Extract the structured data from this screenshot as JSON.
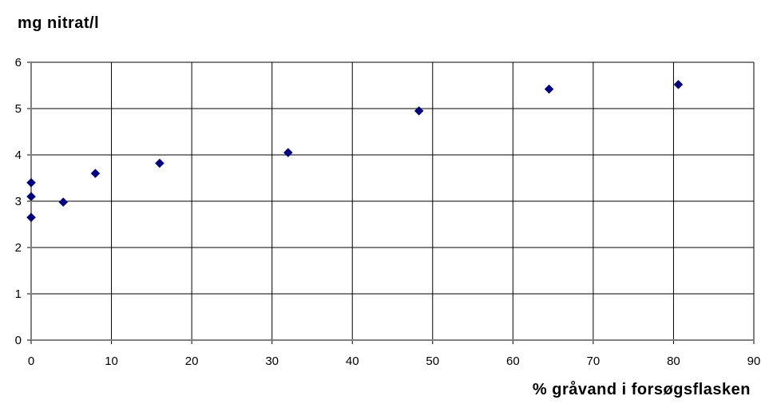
{
  "chart_data": {
    "type": "scatter",
    "ylabel": "mg nitrat/l",
    "xlabel": "% gråvand i forsøgsflasken",
    "xlim": [
      0,
      90
    ],
    "ylim": [
      0,
      6
    ],
    "x_ticks": [
      "0",
      "10",
      "20",
      "30",
      "40",
      "50",
      "60",
      "70",
      "80",
      "90"
    ],
    "y_ticks": [
      "0",
      "1",
      "2",
      "3",
      "4",
      "5",
      "6"
    ],
    "grid": true,
    "marker_color": "#000080",
    "points": [
      {
        "x": 0,
        "y": 2.65
      },
      {
        "x": 0,
        "y": 3.1
      },
      {
        "x": 0,
        "y": 3.4
      },
      {
        "x": 4,
        "y": 2.98
      },
      {
        "x": 8,
        "y": 3.6
      },
      {
        "x": 16,
        "y": 3.82
      },
      {
        "x": 32,
        "y": 4.05
      },
      {
        "x": 48.3,
        "y": 4.95
      },
      {
        "x": 64.5,
        "y": 5.42
      },
      {
        "x": 80.6,
        "y": 5.52
      }
    ]
  }
}
